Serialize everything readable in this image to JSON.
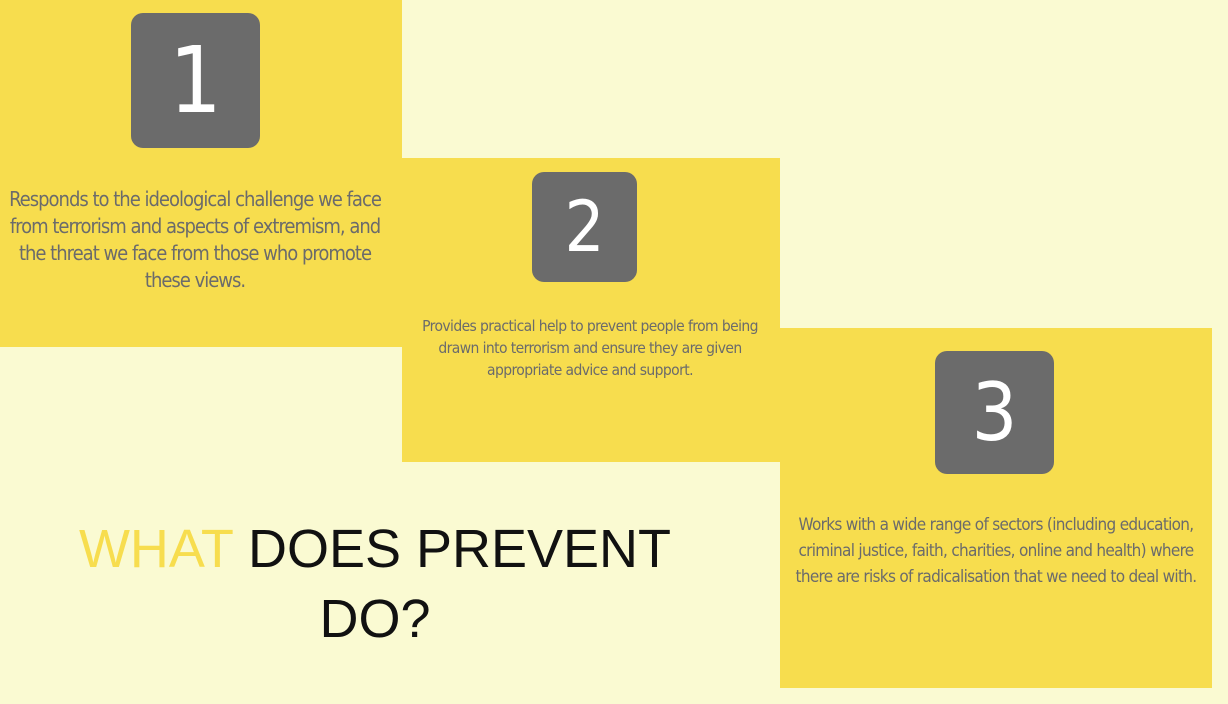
{
  "colors": {
    "background": "#fafad2",
    "card": "#f7dd4e",
    "number_box": "#6b6b6b",
    "card_text": "#6b6b6b",
    "heading_accent": "#f7dd4e",
    "heading_text": "#111111"
  },
  "cards": [
    {
      "number": "1",
      "text": "Responds to the ideological challenge we face from terrorism and aspects of extremism, and the threat we face from those who promote these views."
    },
    {
      "number": "2",
      "text": "Provides practical help to prevent people from being drawn into terrorism and ensure they are given appropriate advice and support."
    },
    {
      "number": "3",
      "text": "Works with a wide range of sectors (including education, criminal justice, faith, charities, online and health) where there are risks of radicalisation that we need to deal with."
    }
  ],
  "heading": {
    "accent": "WHAT",
    "rest_line1": " DOES PREVENT",
    "line2": "DO?"
  }
}
